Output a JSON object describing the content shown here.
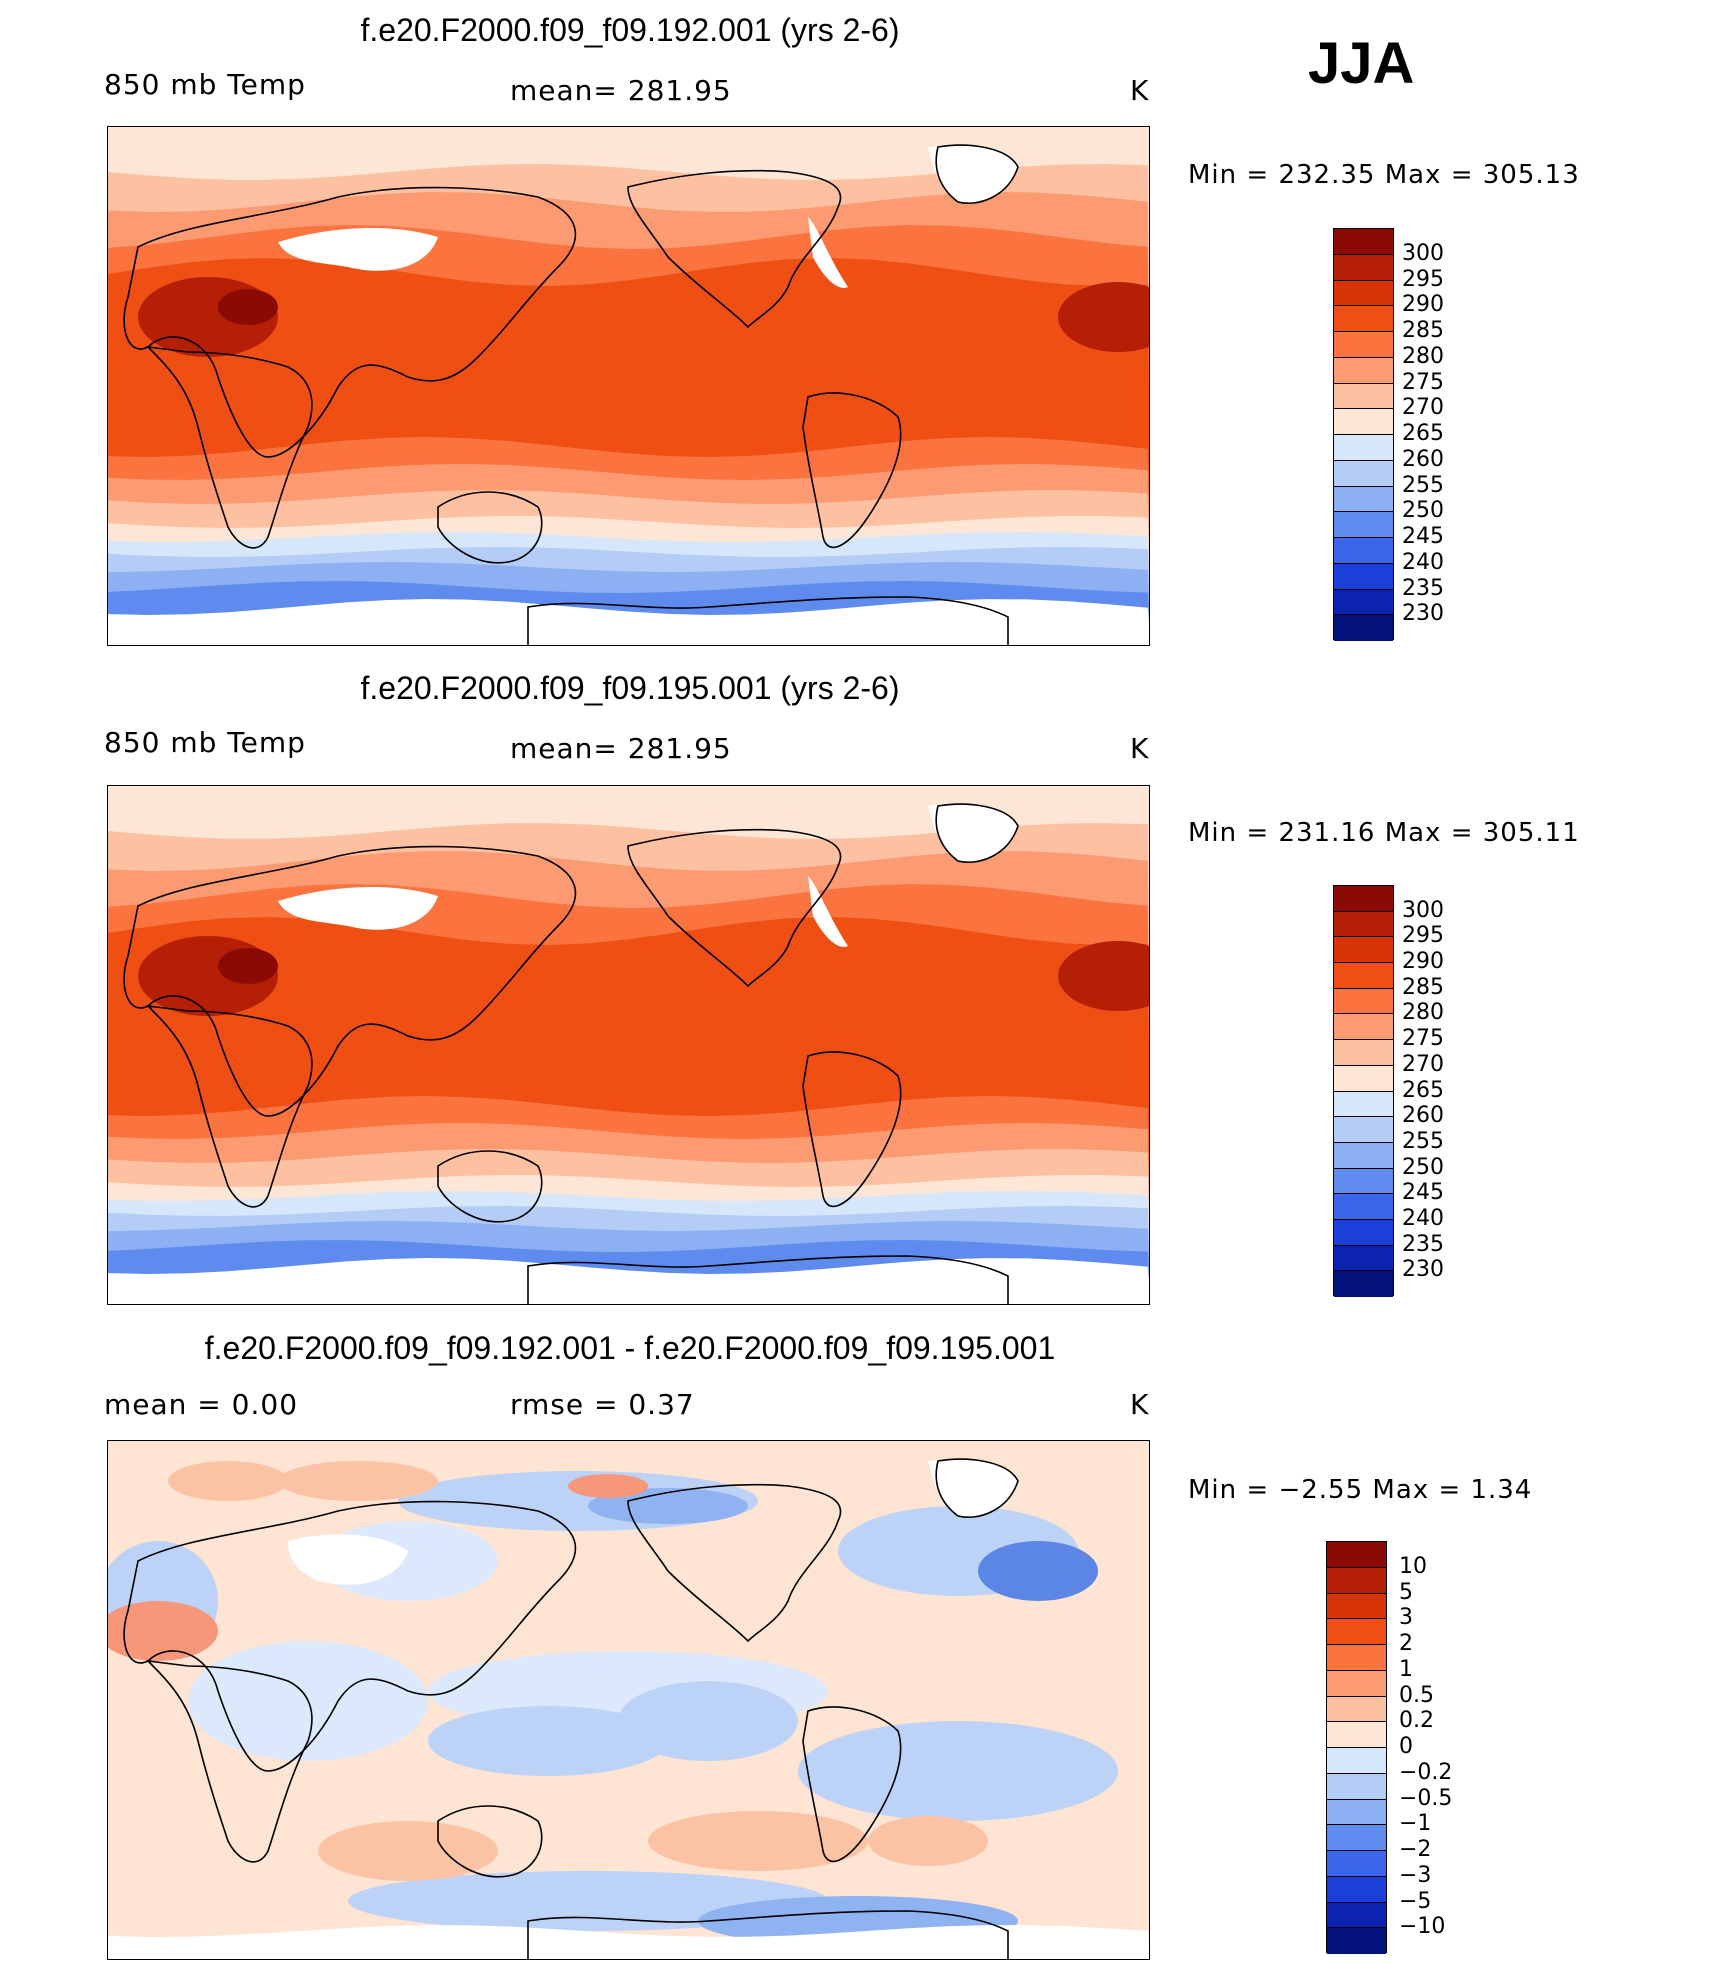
{
  "season": "JJA",
  "panels": [
    {
      "title": "f.e20.F2000.f09_f09.192.001 (yrs 2-6)",
      "left_label": "850 mb Temp",
      "mid_label": "mean= 281.95",
      "units": "K",
      "minmax": "Min = 232.35 Max = 305.13",
      "levels": [
        "300",
        "295",
        "290",
        "285",
        "280",
        "275",
        "270",
        "265",
        "260",
        "255",
        "250",
        "245",
        "240",
        "235",
        "230"
      ]
    },
    {
      "title": "f.e20.F2000.f09_f09.195.001 (yrs 2-6)",
      "left_label": "850 mb Temp",
      "mid_label": "mean= 281.95",
      "units": "K",
      "minmax": "Min = 231.16 Max = 305.11",
      "levels": [
        "300",
        "295",
        "290",
        "285",
        "280",
        "275",
        "270",
        "265",
        "260",
        "255",
        "250",
        "245",
        "240",
        "235",
        "230"
      ]
    },
    {
      "title": "f.e20.F2000.f09_f09.192.001 - f.e20.F2000.f09_f09.195.001",
      "left_label": "mean =    0.00",
      "mid_label": "rmse =    0.37",
      "units": "K",
      "minmax": "Min =   −2.55 Max =     1.34",
      "levels": [
        "10",
        "5",
        "3",
        "2",
        "1",
        "0.5",
        "0.2",
        "0",
        "−0.2",
        "−0.5",
        "−1",
        "−2",
        "−3",
        "−5",
        "−10"
      ]
    }
  ],
  "colorbar_colors": [
    "#8c0a05",
    "#b51f06",
    "#d83506",
    "#f04f14",
    "#fb7440",
    "#fc9a72",
    "#fdc1a2",
    "#fee6d6",
    "#d6e6fb",
    "#b3cdf7",
    "#8db0f2",
    "#5f8bef",
    "#3c66ea",
    "#1b3fd9",
    "#0b23b0",
    "#031278"
  ],
  "map_palette": {
    "hot": [
      "#fee6d6",
      "#fdc1a2",
      "#fc9a72",
      "#fb7440",
      "#f04f14",
      "#d83506",
      "#b51f06",
      "#8c0a05"
    ],
    "cold": [
      "#d6e6fb",
      "#b3cdf7",
      "#8db0f2",
      "#5f8bef",
      "#3c66ea"
    ],
    "diff_warm": [
      "#fde4d3",
      "#fbc2a4",
      "#f7977a"
    ],
    "diff_cool": [
      "#dce8fb",
      "#bcd2f6",
      "#8fb2f0",
      "#5c86e6"
    ]
  }
}
